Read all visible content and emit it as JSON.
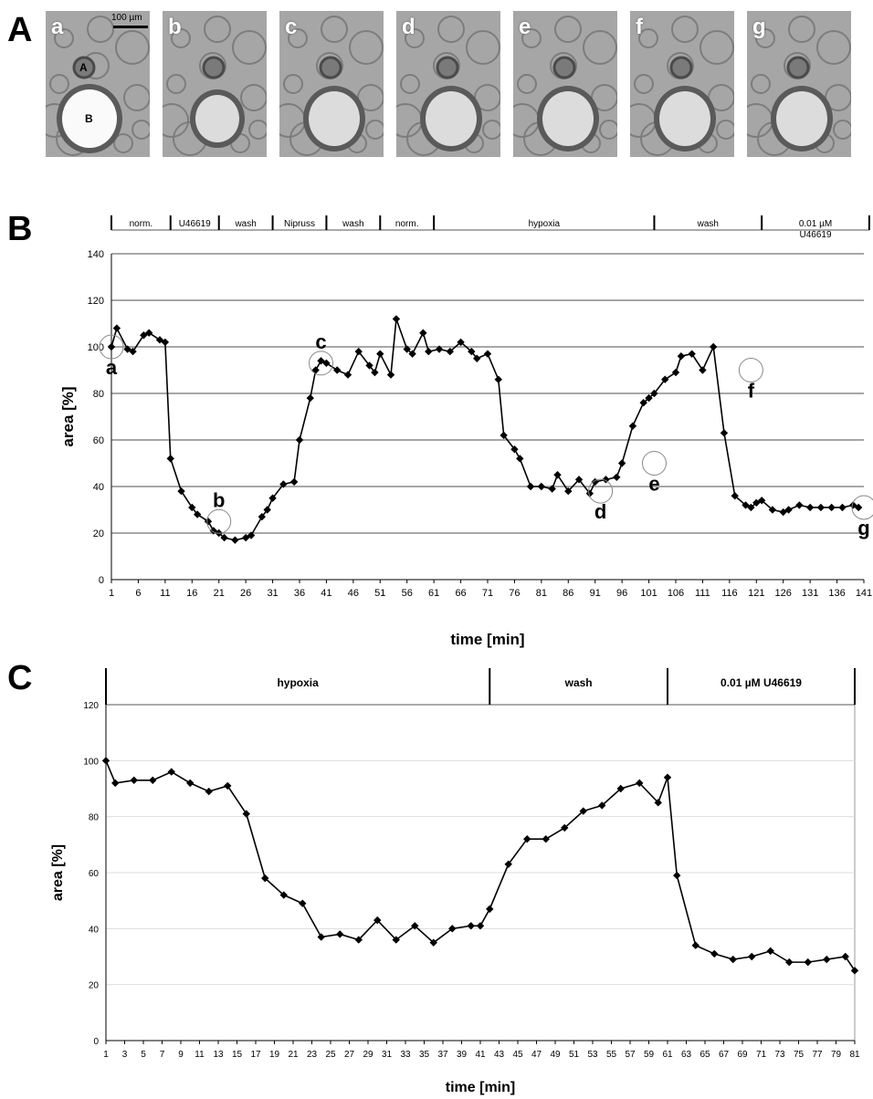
{
  "panel_letters": {
    "a": "A",
    "b": "B",
    "c": "C"
  },
  "micrographs": {
    "frames": [
      "a",
      "b",
      "c",
      "d",
      "e",
      "f",
      "g"
    ],
    "scale_bar": "100 µm",
    "vessel_label": "A",
    "airway_label": "B"
  },
  "chart_data": [
    {
      "type": "line",
      "panel": "B",
      "ylabel": "area [%]",
      "xlabel": "time [min]",
      "ylim": [
        0,
        140
      ],
      "yticks": [
        0,
        20,
        40,
        60,
        80,
        100,
        120,
        140
      ],
      "xticks": [
        1,
        6,
        11,
        16,
        21,
        26,
        31,
        36,
        41,
        46,
        51,
        56,
        61,
        66,
        71,
        76,
        81,
        86,
        91,
        96,
        101,
        106,
        111,
        116,
        121,
        126,
        131,
        136,
        141
      ],
      "grid": "horizontal",
      "phases": [
        {
          "label": "norm.",
          "start": 1,
          "end": 12
        },
        {
          "label": "U46619",
          "start": 12,
          "end": 21
        },
        {
          "label": "wash",
          "start": 21,
          "end": 31
        },
        {
          "label": "Nipruss",
          "start": 31,
          "end": 41
        },
        {
          "label": "wash",
          "start": 41,
          "end": 51
        },
        {
          "label": "norm.",
          "start": 51,
          "end": 61
        },
        {
          "label": "hypoxia",
          "start": 61,
          "end": 102
        },
        {
          "label": "wash",
          "start": 102,
          "end": 122
        },
        {
          "label": "0.01 µM U46619",
          "start": 122,
          "end": 142
        }
      ],
      "series": [
        {
          "x": [
            1,
            2,
            4,
            5,
            7,
            8,
            10,
            11,
            12,
            14,
            16,
            17,
            19,
            20,
            21,
            22,
            24,
            26,
            27,
            29,
            30,
            31,
            33,
            35,
            36,
            38,
            39,
            40,
            41,
            43,
            45,
            47,
            49,
            50,
            51,
            53,
            54,
            56,
            57,
            59,
            60,
            62,
            64,
            66,
            68,
            69,
            71,
            73,
            74,
            76,
            77,
            79,
            81,
            83,
            84,
            86,
            88,
            90,
            91,
            93,
            95,
            96,
            98,
            100,
            101,
            102,
            104,
            106,
            107,
            109,
            111,
            113,
            115,
            117,
            119,
            120,
            121,
            122,
            124,
            126,
            127,
            129,
            131,
            133,
            135,
            137,
            139,
            140
          ],
          "values": [
            100,
            108,
            99,
            98,
            105,
            106,
            103,
            102,
            52,
            38,
            31,
            28,
            25,
            21,
            20,
            18,
            17,
            18,
            19,
            27,
            30,
            35,
            41,
            42,
            60,
            78,
            90,
            94,
            93,
            90,
            88,
            98,
            92,
            89,
            97,
            88,
            112,
            99,
            97,
            106,
            98,
            99,
            98,
            102,
            98,
            95,
            97,
            86,
            62,
            56,
            52,
            40,
            40,
            39,
            45,
            38,
            43,
            37,
            42,
            43,
            44,
            50,
            66,
            76,
            78,
            80,
            86,
            89,
            96,
            97,
            90,
            100,
            63,
            36,
            32,
            31,
            33,
            34,
            30,
            29,
            30,
            32,
            31,
            31,
            31,
            31,
            32,
            31
          ]
        }
      ],
      "annotations": [
        {
          "label": "a",
          "x": 1,
          "y": 100,
          "side": "below"
        },
        {
          "label": "b",
          "x": 21,
          "y": 25,
          "side": "above"
        },
        {
          "label": "c",
          "x": 40,
          "y": 93,
          "side": "above"
        },
        {
          "label": "d",
          "x": 92,
          "y": 38,
          "side": "below"
        },
        {
          "label": "e",
          "x": 102,
          "y": 50,
          "side": "below"
        },
        {
          "label": "f",
          "x": 120,
          "y": 90,
          "side": "below"
        },
        {
          "label": "g",
          "x": 141,
          "y": 31,
          "side": "below"
        }
      ]
    },
    {
      "type": "line",
      "panel": "C",
      "ylabel": "area [%]",
      "xlabel": "time [min]",
      "ylim": [
        0,
        120
      ],
      "yticks": [
        0,
        20,
        40,
        60,
        80,
        100,
        120
      ],
      "xticks": [
        1,
        3,
        5,
        7,
        9,
        11,
        13,
        15,
        17,
        19,
        21,
        23,
        25,
        27,
        29,
        31,
        33,
        35,
        37,
        39,
        41,
        43,
        45,
        47,
        49,
        51,
        53,
        55,
        57,
        59,
        61,
        63,
        65,
        67,
        69,
        71,
        73,
        75,
        77,
        79,
        81
      ],
      "grid": "horizontal",
      "phases": [
        {
          "label": "hypoxia",
          "start": 1,
          "end": 42
        },
        {
          "label": "wash",
          "start": 42,
          "end": 61
        },
        {
          "label": "0.01 µM U46619",
          "start": 61,
          "end": 81
        }
      ],
      "series": [
        {
          "x": [
            1,
            2,
            4,
            6,
            8,
            10,
            12,
            14,
            16,
            18,
            20,
            22,
            24,
            26,
            28,
            30,
            32,
            34,
            36,
            38,
            40,
            41,
            42,
            44,
            46,
            48,
            50,
            52,
            54,
            56,
            58,
            60,
            61,
            62,
            64,
            66,
            68,
            70,
            72,
            74,
            76,
            78,
            80,
            81
          ],
          "values": [
            100,
            92,
            93,
            93,
            96,
            92,
            89,
            91,
            81,
            58,
            52,
            49,
            37,
            38,
            36,
            43,
            36,
            41,
            35,
            40,
            41,
            41,
            47,
            63,
            72,
            72,
            76,
            82,
            84,
            90,
            92,
            85,
            94,
            59,
            34,
            31,
            29,
            30,
            32,
            28,
            28,
            29,
            30,
            25
          ]
        }
      ],
      "annotations": []
    }
  ]
}
